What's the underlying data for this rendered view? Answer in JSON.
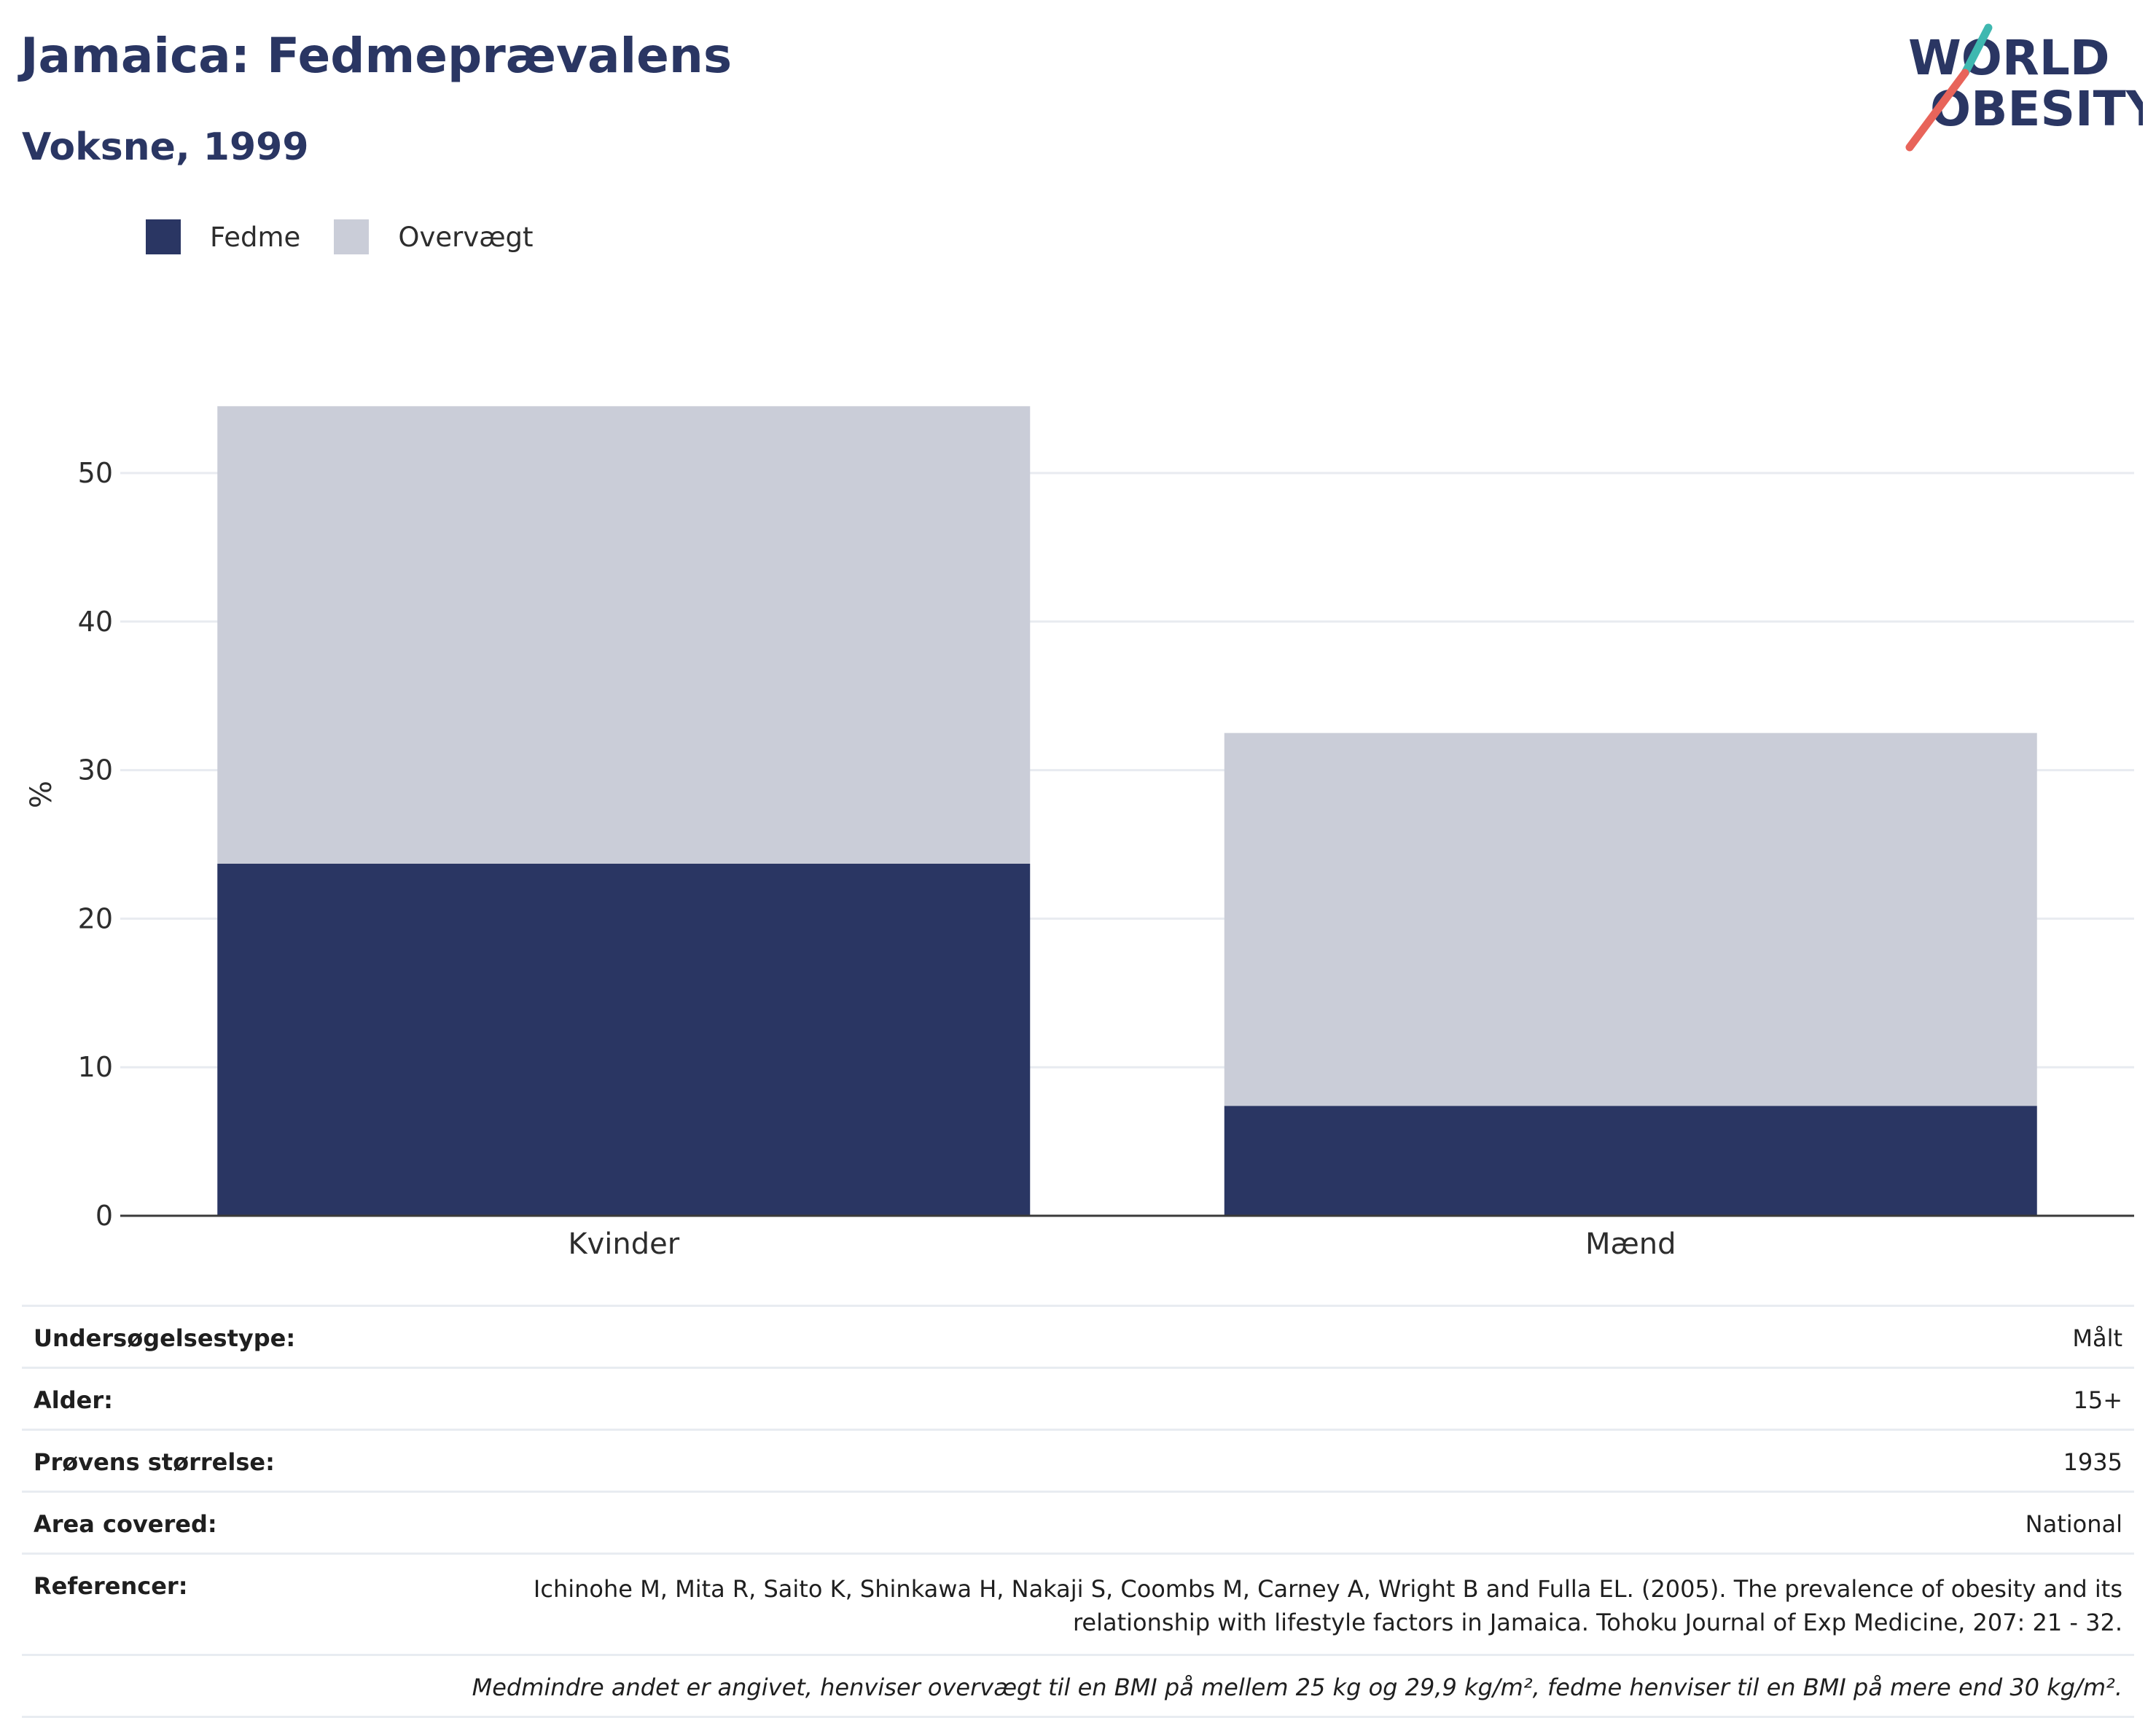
{
  "header": {
    "title": "Jamaica: Fedmeprævalens",
    "subtitle": "Voksne, 1999",
    "logo_line1": "WORLD",
    "logo_line2": "OBESITY"
  },
  "chart_data": {
    "type": "bar",
    "stacked": true,
    "categories": [
      "Kvinder",
      "Mænd"
    ],
    "series": [
      {
        "name": "Fedme",
        "values": [
          23.7,
          7.4
        ],
        "color": "#2a3663"
      },
      {
        "name": "Overvægt",
        "values": [
          30.8,
          25.1
        ],
        "color": "#cacdd8"
      }
    ],
    "ylabel": "%",
    "xlabel": "",
    "ylim": [
      0,
      56
    ],
    "yticks": [
      0,
      10,
      20,
      30,
      40,
      50
    ],
    "grid": true,
    "legend_position": "top-left"
  },
  "info": {
    "rows": [
      {
        "key": "Undersøgelsestype:",
        "value": "Målt"
      },
      {
        "key": "Alder:",
        "value": "15+"
      },
      {
        "key": "Prøvens størrelse:",
        "value": "1935"
      },
      {
        "key": "Area covered:",
        "value": "National"
      },
      {
        "key": "Referencer:",
        "value": "Ichinohe M, Mita R, Saito K, Shinkawa H, Nakaji S, Coombs M, Carney A, Wright B and Fulla EL. (2005). The prevalence of obesity and its relationship with lifestyle factors in Jamaica. Tohoku Journal of Exp Medicine, 207: 21 - 32."
      }
    ],
    "note": "Medmindre andet er angivet, henviser overvægt til en BMI på mellem 25 kg og 29,9 kg/m², fedme henviser til en BMI på mere end 30 kg/m²."
  }
}
